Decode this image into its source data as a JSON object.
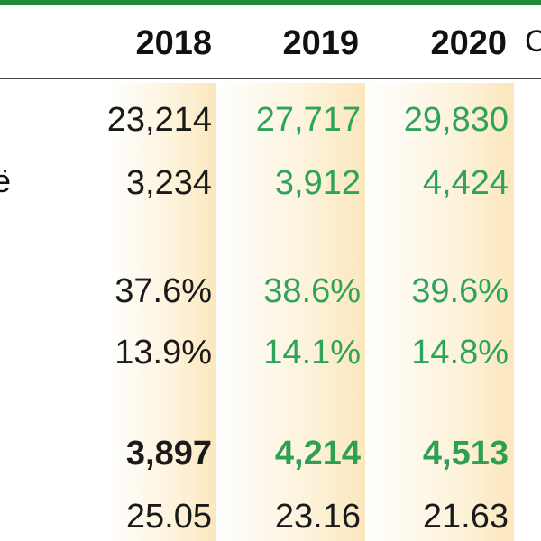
{
  "header": {
    "years": [
      "2018",
      "2019",
      "2020"
    ],
    "cut_label": "C"
  },
  "left_glyph": "ë",
  "rows": [
    {
      "v2018": "23,214",
      "v2019": "27,717",
      "v2020": "29,830"
    },
    {
      "v2018": "3,234",
      "v2019": "3,912",
      "v2020": "4,424"
    },
    {
      "v2018": "37.6%",
      "v2019": "38.6%",
      "v2020": "39.6%"
    },
    {
      "v2018": "13.9%",
      "v2019": "14.1%",
      "v2020": "14.8%"
    },
    {
      "v2018": "3,897",
      "v2019": "4,214",
      "v2020": "4,513"
    },
    {
      "v2018": "25.05",
      "v2019": "23.16",
      "v2020": "21.63"
    }
  ],
  "colors": {
    "top_bar": "#1f8a3c",
    "projection_text": "#2ea35a",
    "actual_text": "#1a1a1a",
    "column_shade": "#fbe7bd"
  }
}
